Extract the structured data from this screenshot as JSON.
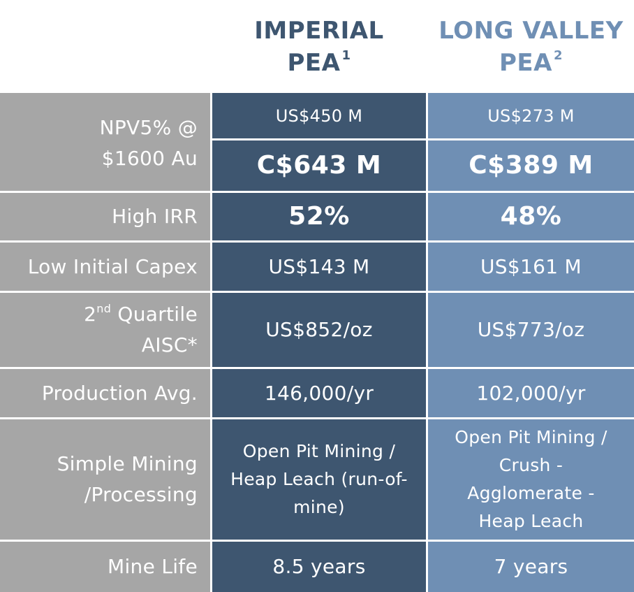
{
  "header": {
    "imperial": {
      "line1": "IMPERIAL",
      "line2": "PEA",
      "note": "1"
    },
    "long_valley": {
      "line1": "LONG VALLEY",
      "line2": "PEA",
      "note": "2"
    }
  },
  "rows": {
    "npv": {
      "label_line1": "NPV5% @",
      "label_line2": "$1600 Au",
      "imperial_usd": "US$450 M",
      "long_valley_usd": "US$273 M",
      "imperial_cad": "C$643 M",
      "long_valley_cad": "C$389 M"
    },
    "irr": {
      "label": "High IRR",
      "imperial": "52%",
      "long_valley": "48%"
    },
    "capex": {
      "label": "Low Initial Capex",
      "imperial": "US$143 M",
      "long_valley": "US$161 M"
    },
    "aisc": {
      "label_prefix": "2",
      "label_sup": "nd",
      "label_suffix": " Quartile",
      "label_line2": "AISC*",
      "imperial": "US$852/oz",
      "long_valley": "US$773/oz"
    },
    "production": {
      "label": "Production Avg.",
      "imperial": "146,000/yr",
      "long_valley": "102,000/yr"
    },
    "mining": {
      "label_line1": "Simple Mining",
      "label_line2": "/Processing",
      "imperial_lines": [
        "Open Pit Mining /",
        "Heap Leach (run-of-",
        "mine)"
      ],
      "long_valley_lines": [
        "Open Pit Mining /",
        "Crush -",
        "Agglomerate -",
        "Heap Leach"
      ]
    },
    "mine_life": {
      "label": "Mine Life",
      "imperial": "8.5 years",
      "long_valley": "7 years"
    }
  },
  "colors": {
    "imperial": "#3e5670",
    "long_valley": "#6f8fb4",
    "label_bg": "#a6a6a6"
  }
}
